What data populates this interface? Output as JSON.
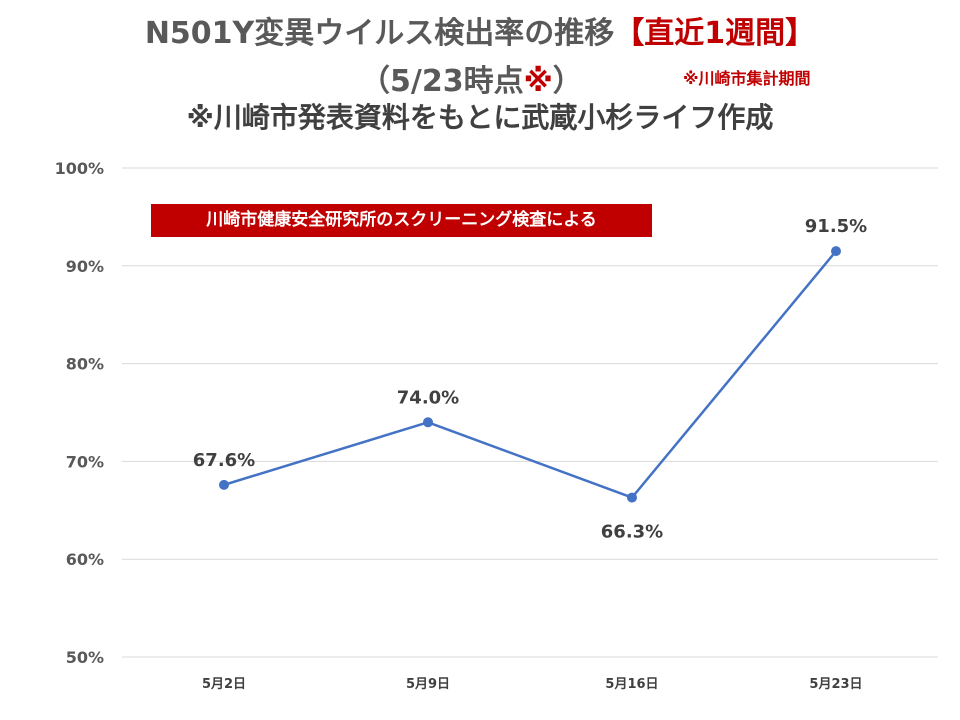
{
  "header": {
    "title_main": "N501Y変異ウイルス検出率の推移",
    "title_highlight": "【直近1週間】",
    "subtitle_main": "（5/23時点",
    "subtitle_mark": "※",
    "subtitle_close": "）",
    "period_note": "※川崎市集計期間",
    "source_note": "※川崎市発表資料をもとに武蔵小杉ライフ作成"
  },
  "banner": {
    "text": "川崎市健康安全研究所のスクリーニング検査による"
  },
  "colors": {
    "line": "#4472c4",
    "accent": "#c00000",
    "grid": "#d9d9d9"
  },
  "chart_data": {
    "type": "line",
    "categories": [
      "5月2日",
      "5月9日",
      "5月16日",
      "5月23日"
    ],
    "values": [
      67.6,
      74.0,
      66.3,
      91.5
    ],
    "data_labels": [
      "67.6%",
      "74.0%",
      "66.3%",
      "91.5%"
    ],
    "label_position": [
      "above",
      "above",
      "below",
      "above"
    ],
    "ylim": [
      50,
      100
    ],
    "yticks": [
      50,
      60,
      70,
      80,
      90,
      100
    ],
    "ytick_labels": [
      "50%",
      "60%",
      "70%",
      "80%",
      "90%",
      "100%"
    ],
    "grid": true,
    "legend": "none"
  }
}
